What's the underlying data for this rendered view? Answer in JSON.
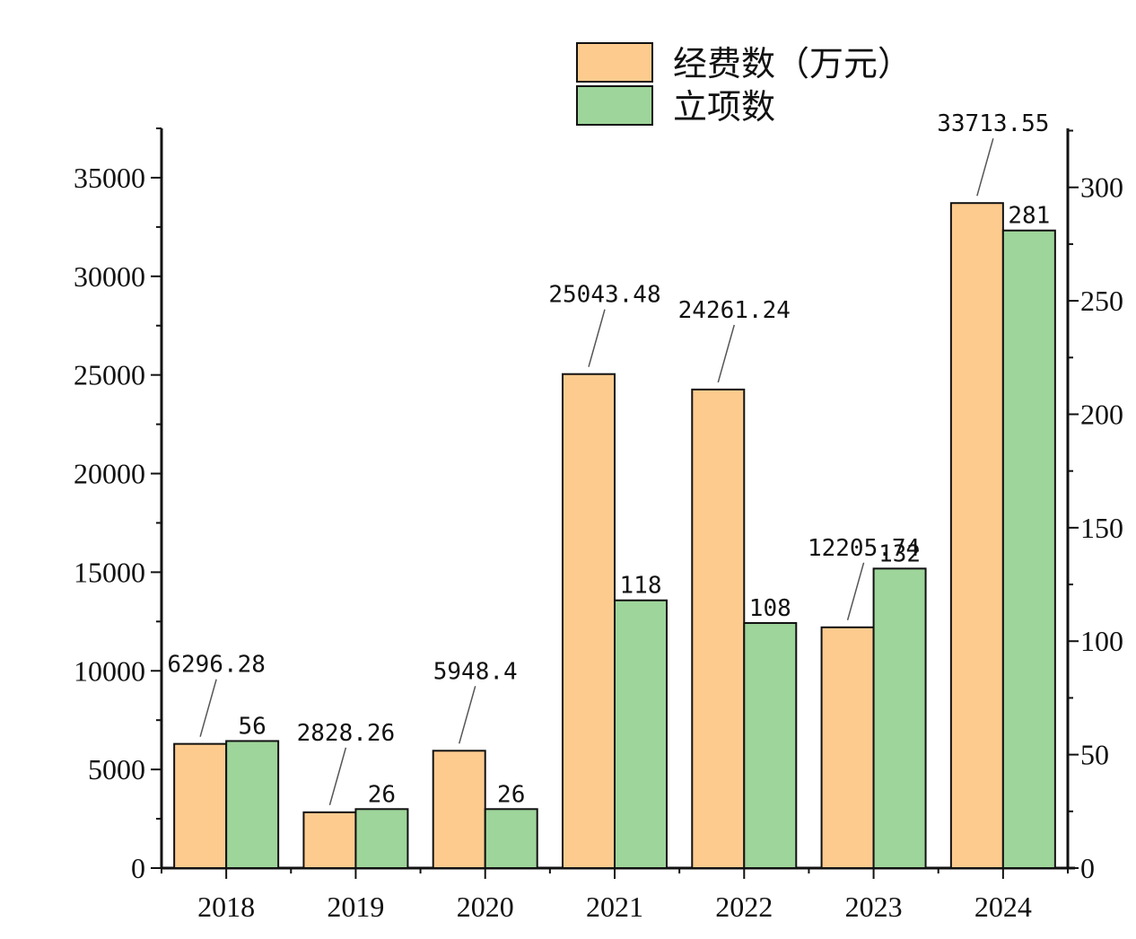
{
  "chart_data": {
    "type": "bar",
    "categories": [
      "2018",
      "2019",
      "2020",
      "2021",
      "2022",
      "2023",
      "2024"
    ],
    "series": [
      {
        "name": "经费数（万元）",
        "axis": "left",
        "color": "#FDCB8E",
        "values": [
          6296.28,
          2828.26,
          5948.4,
          25043.48,
          24261.24,
          12205.74,
          33713.55
        ],
        "labels": [
          "6296.28",
          "2828.26",
          "5948.4",
          "25043.48",
          "24261.24",
          "12205.74",
          "33713.55"
        ]
      },
      {
        "name": "立项数",
        "axis": "right",
        "color": "#9ED59A",
        "values": [
          56,
          26,
          26,
          118,
          108,
          132,
          281
        ],
        "labels": [
          "56",
          "26",
          "26",
          "118",
          "108",
          "132",
          "281"
        ]
      }
    ],
    "y_left": {
      "lim": [
        0,
        37500
      ],
      "ticks": [
        0,
        5000,
        10000,
        15000,
        20000,
        25000,
        30000,
        35000
      ],
      "tick_labels": [
        "0",
        "5000",
        "10000",
        "15000",
        "20000",
        "25000",
        "30000",
        "35000"
      ]
    },
    "y_right": {
      "lim": [
        0,
        326
      ],
      "ticks": [
        0,
        50,
        100,
        150,
        200,
        250,
        300
      ],
      "tick_labels": [
        "0",
        "50",
        "100",
        "150",
        "200",
        "250",
        "300"
      ]
    },
    "legend_position": "top-right",
    "grid": false
  }
}
